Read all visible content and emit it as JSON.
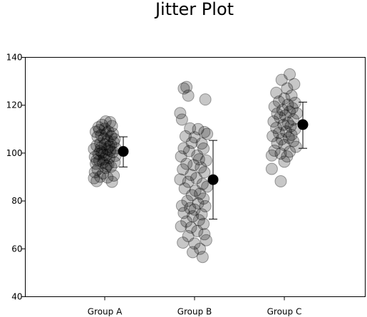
{
  "chart_data": {
    "type": "scatter",
    "title": "Jitter Plot",
    "xlabel": "",
    "ylabel": "",
    "ylim": [
      40,
      140
    ],
    "yticks": [
      40,
      60,
      80,
      100,
      120,
      140
    ],
    "categories": [
      "Group A",
      "Group B",
      "Group C"
    ],
    "grid": false,
    "legend": "none",
    "point_color": "#000000",
    "point_opacity": 0.22,
    "summary_color": "#000000",
    "series": [
      {
        "category": "Group A",
        "mean": 100.7,
        "error_low": 94.2,
        "error_high": 106.8,
        "points": [
          [
            -0.12,
            89.5
          ],
          [
            -0.09,
            88.3
          ],
          [
            -0.05,
            90.1
          ],
          [
            -0.11,
            92.0
          ],
          [
            -0.02,
            91.5
          ],
          [
            0.03,
            89.8
          ],
          [
            0.08,
            88.0
          ],
          [
            0.1,
            90.6
          ],
          [
            -0.1,
            95.6
          ],
          [
            -0.06,
            96.8
          ],
          [
            -0.01,
            97.5
          ],
          [
            0.04,
            95.2
          ],
          [
            0.07,
            94.3
          ],
          [
            0.11,
            96.1
          ],
          [
            -0.08,
            93.2
          ],
          [
            0.01,
            93.8
          ],
          [
            -0.11,
            98.4
          ],
          [
            -0.07,
            99.6
          ],
          [
            -0.03,
            100.2
          ],
          [
            0.02,
            99.1
          ],
          [
            0.06,
            101.0
          ],
          [
            0.09,
            100.4
          ],
          [
            0.12,
            98.9
          ],
          [
            -0.04,
            102.3
          ],
          [
            -0.09,
            103.1
          ],
          [
            -0.05,
            104.0
          ],
          [
            0.0,
            103.6
          ],
          [
            0.05,
            102.8
          ],
          [
            0.1,
            104.5
          ],
          [
            -0.12,
            101.7
          ],
          [
            0.03,
            105.2
          ],
          [
            -0.01,
            106.1
          ],
          [
            -0.08,
            106.8
          ],
          [
            -0.04,
            107.5
          ],
          [
            0.02,
            108.2
          ],
          [
            0.07,
            107.0
          ],
          [
            0.11,
            105.8
          ],
          [
            -0.1,
            108.9
          ],
          [
            -0.06,
            109.6
          ],
          [
            0.0,
            110.2
          ],
          [
            0.04,
            109.0
          ],
          [
            0.08,
            111.3
          ],
          [
            -0.03,
            111.8
          ],
          [
            0.06,
            112.9
          ],
          [
            0.01,
            113.2
          ],
          [
            -0.07,
            110.8
          ],
          [
            0.09,
            108.1
          ],
          [
            -0.02,
            96.0
          ],
          [
            0.05,
            98.0
          ],
          [
            -0.05,
            100.9
          ],
          [
            0.03,
            101.5
          ],
          [
            -0.09,
            97.0
          ],
          [
            0.07,
            103.5
          ],
          [
            -0.01,
            99.3
          ],
          [
            0.02,
            94.6
          ],
          [
            0.12,
            102.0
          ]
        ]
      },
      {
        "category": "Group B",
        "mean": 88.9,
        "error_low": 72.4,
        "error_high": 105.3,
        "points": [
          [
            -0.09,
            127.6
          ],
          [
            -0.12,
            127.0
          ],
          [
            -0.07,
            124.0
          ],
          [
            0.12,
            122.4
          ],
          [
            -0.16,
            116.7
          ],
          [
            -0.14,
            114.0
          ],
          [
            -0.05,
            110.3
          ],
          [
            0.04,
            110.0
          ],
          [
            0.11,
            108.8
          ],
          [
            0.14,
            108.0
          ],
          [
            -0.1,
            107.0
          ],
          [
            0.0,
            106.6
          ],
          [
            -0.03,
            104.3
          ],
          [
            0.08,
            104.0
          ],
          [
            -0.12,
            102.0
          ],
          [
            0.1,
            101.9
          ],
          [
            -0.06,
            100.8
          ],
          [
            0.03,
            99.0
          ],
          [
            -0.15,
            98.6
          ],
          [
            0.05,
            97.4
          ],
          [
            0.13,
            96.9
          ],
          [
            -0.09,
            95.5
          ],
          [
            -0.01,
            95.0
          ],
          [
            0.07,
            94.0
          ],
          [
            -0.13,
            93.2
          ],
          [
            0.11,
            92.0
          ],
          [
            -0.04,
            90.9
          ],
          [
            0.02,
            89.5
          ],
          [
            -0.16,
            89.0
          ],
          [
            -0.07,
            88.0
          ],
          [
            0.09,
            87.1
          ],
          [
            0.14,
            86.0
          ],
          [
            -0.11,
            85.2
          ],
          [
            0.01,
            84.3
          ],
          [
            0.06,
            83.0
          ],
          [
            -0.03,
            82.4
          ],
          [
            0.1,
            81.0
          ],
          [
            -0.08,
            80.0
          ],
          [
            0.04,
            79.0
          ],
          [
            -0.14,
            78.0
          ],
          [
            0.12,
            77.8
          ],
          [
            -0.05,
            77.0
          ],
          [
            0.0,
            76.4
          ],
          [
            -0.12,
            75.0
          ],
          [
            0.08,
            74.4
          ],
          [
            -0.02,
            73.6
          ],
          [
            0.05,
            72.0
          ],
          [
            -0.09,
            71.4
          ],
          [
            0.1,
            70.4
          ],
          [
            -0.15,
            69.4
          ],
          [
            -0.04,
            68.9
          ],
          [
            0.03,
            67.4
          ],
          [
            0.11,
            66.1
          ],
          [
            -0.07,
            65.3
          ],
          [
            0.13,
            63.6
          ],
          [
            -0.13,
            62.6
          ],
          [
            0.0,
            62.2
          ],
          [
            0.06,
            60.0
          ],
          [
            -0.02,
            58.6
          ],
          [
            0.09,
            56.6
          ]
        ]
      },
      {
        "category": "Group C",
        "mean": 111.9,
        "error_low": 102.0,
        "error_high": 121.3,
        "points": [
          [
            0.06,
            132.9
          ],
          [
            -0.03,
            130.6
          ],
          [
            0.11,
            128.8
          ],
          [
            0.03,
            127.0
          ],
          [
            -0.09,
            125.2
          ],
          [
            0.08,
            124.0
          ],
          [
            0.0,
            122.8
          ],
          [
            -0.06,
            121.5
          ],
          [
            0.12,
            121.0
          ],
          [
            0.04,
            120.2
          ],
          [
            -0.11,
            119.4
          ],
          [
            0.09,
            118.8
          ],
          [
            -0.02,
            118.0
          ],
          [
            0.06,
            117.3
          ],
          [
            -0.08,
            116.5
          ],
          [
            0.14,
            116.6
          ],
          [
            0.01,
            115.7
          ],
          [
            -0.05,
            114.9
          ],
          [
            0.1,
            114.0
          ],
          [
            -0.12,
            113.2
          ],
          [
            0.04,
            112.6
          ],
          [
            -0.01,
            111.8
          ],
          [
            0.07,
            111.2
          ],
          [
            -0.09,
            110.5
          ],
          [
            0.12,
            110.0
          ],
          [
            0.02,
            109.0
          ],
          [
            -0.06,
            108.4
          ],
          [
            0.08,
            107.6
          ],
          [
            -0.13,
            107.1
          ],
          [
            0.05,
            106.4
          ],
          [
            -0.03,
            105.8
          ],
          [
            0.1,
            105.0
          ],
          [
            -0.08,
            104.2
          ],
          [
            0.0,
            103.4
          ],
          [
            0.13,
            102.6
          ],
          [
            -0.11,
            101.0
          ],
          [
            0.06,
            100.6
          ],
          [
            -0.04,
            99.8
          ],
          [
            0.03,
            98.6
          ],
          [
            -0.14,
            99.0
          ],
          [
            0.0,
            96.4
          ],
          [
            -0.14,
            93.4
          ],
          [
            -0.04,
            88.2
          ]
        ]
      }
    ]
  }
}
